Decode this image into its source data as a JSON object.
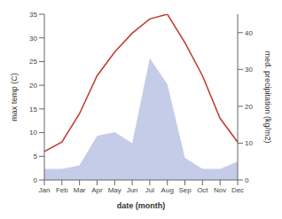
{
  "chart_data": {
    "type": "line",
    "categories": [
      "Jan",
      "Feb",
      "Mar",
      "Apr",
      "May",
      "Jun",
      "Jul",
      "Aug",
      "Sep",
      "Oct",
      "Nov",
      "Dec"
    ],
    "series": [
      {
        "type": "area",
        "axis": "y2",
        "color": "#c5cce8",
        "values": [
          3,
          3,
          4,
          12,
          13,
          10,
          33,
          26,
          6,
          3,
          3,
          5
        ]
      },
      {
        "type": "line",
        "color": "#c0392b",
        "values": [
          6,
          8,
          14,
          22,
          27,
          31,
          34,
          35,
          29,
          22,
          13,
          8
        ]
      }
    ],
    "xlabel": "date (month)",
    "ylabel": "max temp (C)",
    "y2label": "med. precipitation (kg/m2)",
    "ylim": [
      0,
      35
    ],
    "yticks": [
      0,
      5,
      10,
      15,
      20,
      25,
      30,
      35
    ],
    "y2lim": [
      0,
      45
    ],
    "y2ticks": [
      0,
      10,
      20,
      30,
      40
    ],
    "grid": false
  }
}
